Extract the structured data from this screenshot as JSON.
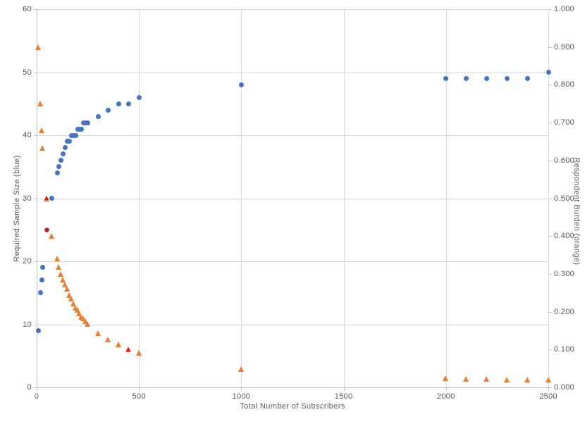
{
  "colors": {
    "series_blue": "#4472c4",
    "series_orange": "#ed7d31",
    "highlight_red": "#ff0000",
    "gridline": "#d9d9d9",
    "axis_line": "#bfbfbf",
    "text": "#595959",
    "background": "#ffffff"
  },
  "chart_data": {
    "type": "scatter",
    "title": "",
    "xlabel": "Total Number of Subscribers",
    "ylabel_left": "Required Sample Size (blue)",
    "ylabel_right": "Respondent Burden (orange)",
    "x_range": [
      0,
      2500
    ],
    "y_left_range": [
      0,
      60
    ],
    "y_right_range": [
      0,
      1
    ],
    "grid": true,
    "legend": "none",
    "x_ticks": {
      "values": [
        0,
        500,
        1000,
        1500,
        2000,
        2500
      ],
      "labels": [
        "0",
        "500",
        "1000",
        "1500",
        "2000",
        "2500"
      ]
    },
    "y_left_ticks": {
      "values": [
        0,
        10,
        20,
        30,
        40,
        50,
        60
      ],
      "labels": [
        "0",
        "10",
        "20",
        "30",
        "40",
        "50",
        "60"
      ]
    },
    "y_right_ticks": {
      "values": [
        0,
        0.1,
        0.2,
        0.3,
        0.4,
        0.5,
        0.6,
        0.7,
        0.8,
        0.9,
        1.0
      ],
      "labels": [
        "0.000",
        "0.100",
        "0.200",
        "0.300",
        "0.400",
        "0.500",
        "0.600",
        "0.700",
        "0.800",
        "0.900",
        "1.000"
      ]
    },
    "series": [
      {
        "name": "Required Sample Size",
        "marker": "circle",
        "color_key": "series_blue",
        "axis": "left",
        "points": [
          [
            10,
            9
          ],
          [
            20,
            15
          ],
          [
            25,
            17
          ],
          [
            30,
            19
          ],
          [
            50,
            25
          ],
          [
            75,
            30
          ],
          [
            100,
            34
          ],
          [
            110,
            35
          ],
          [
            120,
            36
          ],
          [
            130,
            37
          ],
          [
            140,
            38
          ],
          [
            150,
            39
          ],
          [
            160,
            39
          ],
          [
            170,
            40
          ],
          [
            180,
            40
          ],
          [
            190,
            40
          ],
          [
            200,
            41
          ],
          [
            210,
            41
          ],
          [
            220,
            41
          ],
          [
            230,
            42
          ],
          [
            240,
            42
          ],
          [
            250,
            42
          ],
          [
            300,
            43
          ],
          [
            350,
            44
          ],
          [
            400,
            45
          ],
          [
            450,
            45
          ],
          [
            500,
            46
          ],
          [
            1000,
            48
          ],
          [
            2000,
            49
          ],
          [
            2100,
            49
          ],
          [
            2200,
            49
          ],
          [
            2300,
            49
          ],
          [
            2400,
            49
          ],
          [
            2500,
            50
          ]
        ]
      },
      {
        "name": "Respondent Burden",
        "marker": "triangle",
        "color_key": "series_orange",
        "axis": "right",
        "points": [
          [
            10,
            0.9
          ],
          [
            20,
            0.75
          ],
          [
            25,
            0.68
          ],
          [
            30,
            0.633
          ],
          [
            50,
            0.5
          ],
          [
            75,
            0.4
          ],
          [
            100,
            0.34
          ],
          [
            110,
            0.318
          ],
          [
            120,
            0.3
          ],
          [
            130,
            0.285
          ],
          [
            140,
            0.271
          ],
          [
            150,
            0.26
          ],
          [
            160,
            0.244
          ],
          [
            170,
            0.235
          ],
          [
            180,
            0.222
          ],
          [
            190,
            0.211
          ],
          [
            200,
            0.205
          ],
          [
            210,
            0.195
          ],
          [
            220,
            0.186
          ],
          [
            230,
            0.183
          ],
          [
            240,
            0.175
          ],
          [
            250,
            0.168
          ],
          [
            300,
            0.143
          ],
          [
            350,
            0.126
          ],
          [
            400,
            0.113
          ],
          [
            450,
            0.1
          ],
          [
            500,
            0.092
          ],
          [
            1000,
            0.048
          ],
          [
            2000,
            0.025
          ],
          [
            2100,
            0.023
          ],
          [
            2200,
            0.022
          ],
          [
            2300,
            0.021
          ],
          [
            2400,
            0.02
          ],
          [
            2500,
            0.02
          ]
        ]
      }
    ],
    "highlights": [
      {
        "marker": "circle",
        "axis": "left",
        "x": 50,
        "y": 25,
        "color_key": "highlight_red"
      },
      {
        "marker": "triangle",
        "axis": "right",
        "x": 50,
        "y": 0.5,
        "color_key": "highlight_red"
      },
      {
        "marker": "triangle",
        "axis": "right",
        "x": 450,
        "y": 0.1,
        "color_key": "highlight_red"
      }
    ]
  }
}
